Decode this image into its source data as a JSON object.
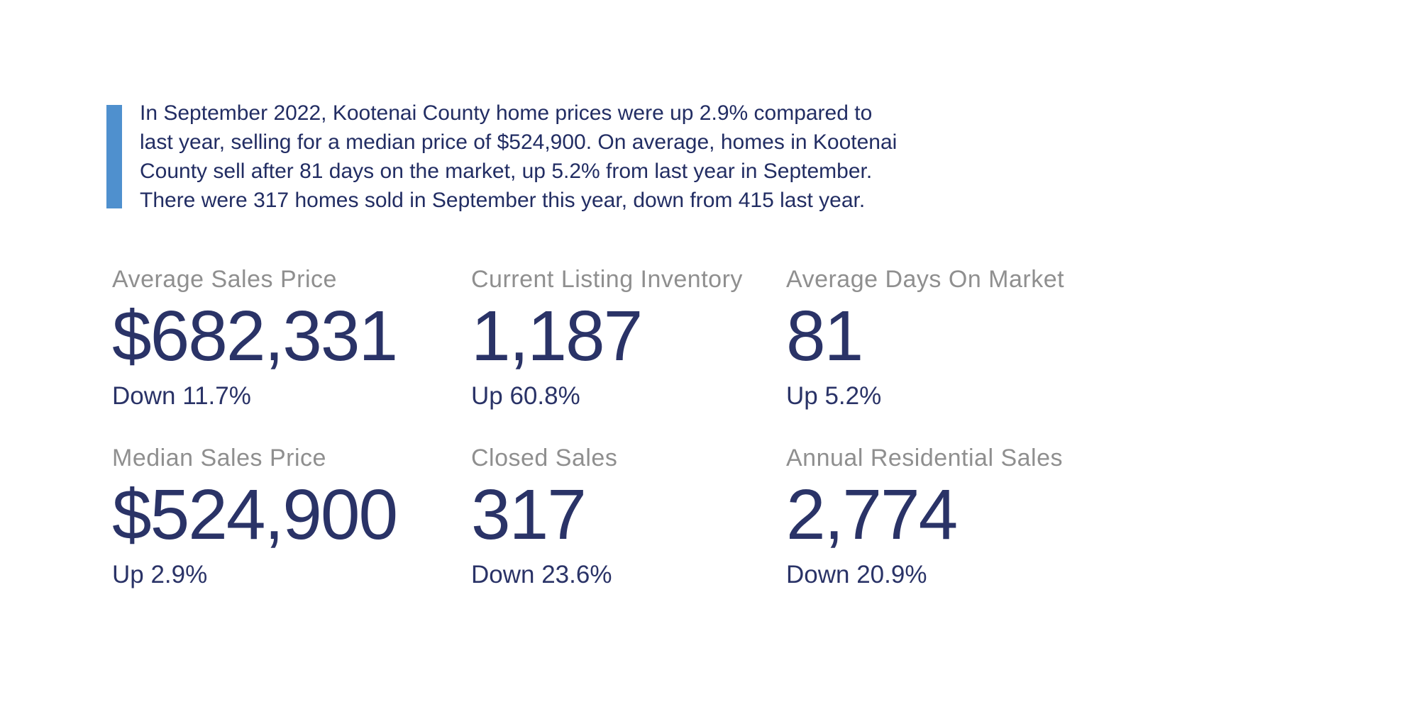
{
  "page": {
    "background_color": "#ffffff"
  },
  "quote": {
    "bar_color": "#4f90ce",
    "text_color": "#222d63",
    "lines": [
      "In September 2022, Kootenai County home prices were up 2.9% compared to",
      "last year, selling for a median price of $524,900. On average, homes in Kootenai",
      "County sell after 81 days on the market, up 5.2% from last year in September.",
      "There were 317 homes sold in September this year, down from 415 last year."
    ]
  },
  "stats": {
    "label_color": "#8f8f8f",
    "value_color": "#2a3367",
    "items": [
      {
        "label": "Average Sales Price",
        "value": "$682,331",
        "change": "Down 11.7%"
      },
      {
        "label": "Current Listing Inventory",
        "value": "1,187",
        "change": "Up 60.8%"
      },
      {
        "label": "Average Days On Market",
        "value": "81",
        "change": "Up 5.2%"
      },
      {
        "label": "Median Sales Price",
        "value": "$524,900",
        "change": "Up 2.9%"
      },
      {
        "label": "Closed Sales",
        "value": "317",
        "change": "Down 23.6%"
      },
      {
        "label": "Annual Residential Sales",
        "value": "2,774",
        "change": "Down 20.9%"
      }
    ]
  }
}
